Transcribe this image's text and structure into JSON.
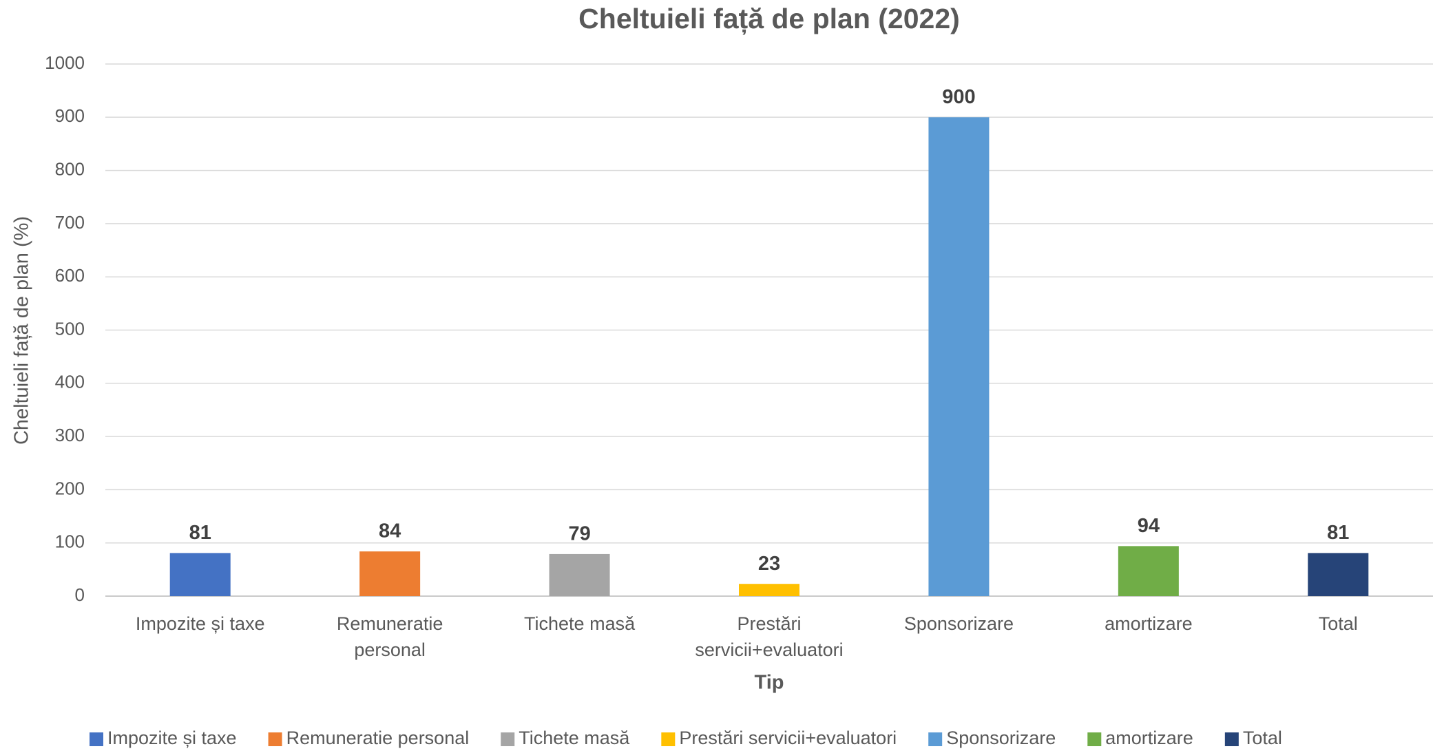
{
  "chart_data": {
    "type": "bar",
    "title": "Cheltuieli față de plan (2022)",
    "x_label": "Tip",
    "y_label": "Cheltuieli față de plan (%)",
    "categories": [
      "Impozite și taxe",
      "Remuneratie personal",
      "Tichete masă",
      "Prestări servicii+evaluatori",
      "Sponsorizare",
      "amortizare",
      "Total"
    ],
    "values": [
      81,
      84,
      79,
      23,
      900,
      94,
      81
    ],
    "colors": [
      "#4472c4",
      "#ed7d31",
      "#a5a5a5",
      "#ffc000",
      "#5b9bd5",
      "#70ad47",
      "#264478"
    ],
    "ylim": [
      0,
      1000
    ],
    "yticks": [
      0,
      100,
      200,
      300,
      400,
      500,
      600,
      700,
      800,
      900,
      1000
    ],
    "grid": true,
    "legend": "bottom"
  }
}
